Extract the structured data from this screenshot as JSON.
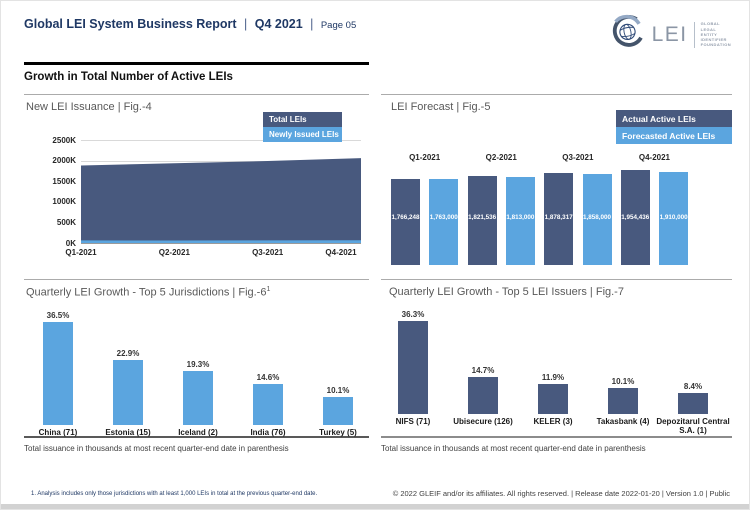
{
  "header": {
    "title": "Global LEI System Business Report",
    "sep": "|",
    "quarter": "Q4 2021",
    "page": "Page 05"
  },
  "logo": {
    "word": "LEI",
    "tagline_lines": [
      "GLOBAL",
      "LEGAL",
      "ENTITY",
      "IDENTIFIER",
      "FOUNDATION"
    ]
  },
  "section_heading": "Growth in Total Number of Active LEIs",
  "colors": {
    "dark_blue": "#48597E",
    "light_blue": "#5BA5DF",
    "navy": "#1F3864"
  },
  "chart_data": [
    {
      "id": "fig4",
      "type": "area",
      "title": "New LEI Issuance | Fig.-4",
      "x": [
        "Q1-2021",
        "Q2-2021",
        "Q3-2021",
        "Q4-2021"
      ],
      "series": [
        {
          "name": "Total LEIs",
          "values": [
            1880000,
            1935000,
            1990000,
            2060000
          ],
          "color": "#48597E"
        },
        {
          "name": "Newly Issued LEIs",
          "values": [
            62000,
            60000,
            63000,
            65000
          ],
          "color": "#5BA5DF"
        }
      ],
      "ylim": [
        0,
        2500000
      ],
      "yticks": [
        "0K",
        "500K",
        "1000K",
        "1500K",
        "2000K",
        "2500K"
      ],
      "grid": true,
      "legend_position": "top-right"
    },
    {
      "id": "fig5",
      "type": "bar",
      "title": "LEI Forecast | Fig.-5",
      "categories": [
        "Q1-2021",
        "Q2-2021",
        "Q3-2021",
        "Q4-2021"
      ],
      "series": [
        {
          "name": "Actual Active LEIs",
          "values": [
            1766248,
            1821536,
            1878317,
            1954436
          ],
          "labels": [
            "1,766,248",
            "1,821,536",
            "1,878,317",
            "1,954,436"
          ],
          "color": "#48597E"
        },
        {
          "name": "Forecasted Active LEIs",
          "values": [
            1763000,
            1813000,
            1858000,
            1910000
          ],
          "labels": [
            "1,763,000",
            "1,813,000",
            "1,858,000",
            "1,910,000"
          ],
          "color": "#5BA5DF"
        }
      ],
      "ylim": [
        0,
        1954436
      ],
      "grid": false,
      "legend_position": "top-right"
    },
    {
      "id": "fig6",
      "type": "bar",
      "title": "Quarterly LEI Growth - Top 5 Jurisdictions | Fig.-6",
      "title_sup": "1",
      "categories": [
        "China (71)",
        "Estonia (15)",
        "Iceland (2)",
        "India (76)",
        "Turkey (5)"
      ],
      "values": [
        36.5,
        22.9,
        19.3,
        14.6,
        10.1
      ],
      "value_labels": [
        "36.5%",
        "22.9%",
        "19.3%",
        "14.6%",
        "10.1%"
      ],
      "color": "#5BA5DF",
      "ylim": [
        0,
        40
      ],
      "grid": false,
      "note": "Total issuance in thousands at most recent quarter-end date in parenthesis"
    },
    {
      "id": "fig7",
      "type": "bar",
      "title": "Quarterly LEI Growth - Top 5 LEI Issuers | Fig.-7",
      "categories": [
        "NIFS (71)",
        "Ubisecure (126)",
        "KELER (3)",
        "Takasbank (4)",
        "Depozitarul Central S.A. (1)"
      ],
      "values": [
        36.3,
        14.7,
        11.9,
        10.1,
        8.4
      ],
      "value_labels": [
        "36.3%",
        "14.7%",
        "11.9%",
        "10.1%",
        "8.4%"
      ],
      "color": "#48597E",
      "ylim": [
        0,
        40
      ],
      "grid": false,
      "note": "Total issuance in thousands at most recent quarter-end date in parenthesis"
    }
  ],
  "footer": {
    "footnote": "1. Analysis includes only those jurisdictions with at least 1,000 LEIs in total at the previous quarter-end date.",
    "copyright": "© 2022 GLEIF and/or its affiliates. All rights reserved.  | Release date 2022-01-20 | Version 1.0 | Public"
  }
}
